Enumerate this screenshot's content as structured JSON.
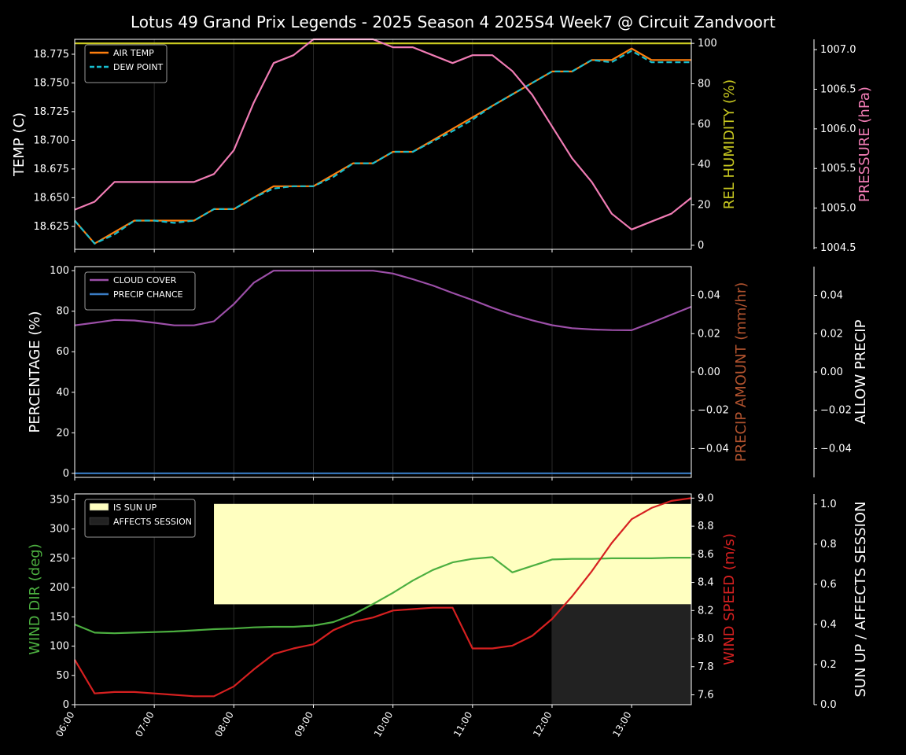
{
  "title": "Lotus 49 Grand Prix Legends - 2025 Season 4 2025S4 Week7 @ Circuit Zandvoort",
  "time_ticks": [
    "06:00",
    "07:00",
    "08:00",
    "09:00",
    "10:00",
    "11:00",
    "12:00",
    "13:00"
  ],
  "chart_data": [
    {
      "type": "line",
      "panel": "top",
      "x": [
        "06:00",
        "06:15",
        "06:30",
        "06:45",
        "07:00",
        "07:15",
        "07:30",
        "07:45",
        "08:00",
        "08:15",
        "08:30",
        "08:45",
        "09:00",
        "09:15",
        "09:30",
        "09:45",
        "10:00",
        "10:15",
        "10:30",
        "10:45",
        "11:00",
        "11:15",
        "11:30",
        "11:45",
        "12:00",
        "12:15",
        "12:30",
        "12:45",
        "13:00",
        "13:15",
        "13:30",
        "13:45"
      ],
      "axes": {
        "left": {
          "label": "TEMP (C)",
          "ylim": [
            18.605,
            18.788
          ],
          "ticks": [
            "18.625",
            "18.650",
            "18.675",
            "18.700",
            "18.725",
            "18.750",
            "18.775"
          ],
          "tick_values": [
            18.625,
            18.65,
            18.675,
            18.7,
            18.725,
            18.75,
            18.775
          ],
          "color": "#ffffff"
        },
        "right1": {
          "label": "REL HUMIDITY (%)",
          "ylim": [
            -2,
            102
          ],
          "ticks": [
            "0",
            "20",
            "40",
            "60",
            "80",
            "100"
          ],
          "tick_values": [
            0,
            20,
            40,
            60,
            80,
            100
          ],
          "color": "#c8c820"
        },
        "right2": {
          "label": "PRESSURE (hPa)",
          "ylim": [
            1004.48,
            1007.13
          ],
          "ticks": [
            "1004.5",
            "1005.0",
            "1005.5",
            "1006.0",
            "1006.5",
            "1007.0"
          ],
          "tick_values": [
            1004.5,
            1005.0,
            1005.5,
            1006.0,
            1006.5,
            1007.0
          ],
          "color": "#f07cb4"
        }
      },
      "series": [
        {
          "name": "AIR TEMP",
          "axis": "left",
          "color": "#ff7f0e",
          "style": "solid",
          "values": [
            18.63,
            18.61,
            18.62,
            18.63,
            18.63,
            18.63,
            18.63,
            18.64,
            18.64,
            18.65,
            18.66,
            18.66,
            18.66,
            18.67,
            18.68,
            18.68,
            18.69,
            18.69,
            18.7,
            18.71,
            18.72,
            18.73,
            18.74,
            18.75,
            18.76,
            18.76,
            18.77,
            18.77,
            18.78,
            18.77,
            18.77,
            18.77
          ]
        },
        {
          "name": "DEW POINT",
          "axis": "left",
          "color": "#17becf",
          "style": "dashed",
          "values": [
            18.63,
            18.61,
            18.618,
            18.63,
            18.63,
            18.628,
            18.63,
            18.64,
            18.64,
            18.65,
            18.658,
            18.66,
            18.66,
            18.668,
            18.68,
            18.68,
            18.69,
            18.69,
            18.699,
            18.708,
            18.718,
            18.73,
            18.74,
            18.75,
            18.76,
            18.76,
            18.77,
            18.768,
            18.778,
            18.768,
            18.768,
            18.768
          ]
        },
        {
          "name": "REL HUMIDITY",
          "axis": "right1",
          "color": "#c8c820",
          "style": "solid",
          "values": [
            100,
            100,
            100,
            100,
            100,
            100,
            100,
            100,
            100,
            100,
            100,
            100,
            100,
            100,
            100,
            100,
            100,
            100,
            100,
            100,
            100,
            100,
            100,
            100,
            100,
            100,
            100,
            100,
            100,
            100,
            100,
            100
          ]
        },
        {
          "name": "PRESSURE",
          "axis": "right2",
          "color": "#f07cb4",
          "style": "solid",
          "values": [
            1004.98,
            1005.08,
            1005.33,
            1005.33,
            1005.33,
            1005.33,
            1005.33,
            1005.43,
            1005.73,
            1006.33,
            1006.83,
            1006.93,
            1007.13,
            1007.13,
            1007.13,
            1007.13,
            1007.03,
            1007.03,
            1006.93,
            1006.83,
            1006.93,
            1006.93,
            1006.73,
            1006.43,
            1006.03,
            1005.63,
            1005.33,
            1004.93,
            1004.73,
            1004.83,
            1004.93,
            1005.13
          ]
        }
      ],
      "legend": {
        "placement": "top-left",
        "entries": [
          "AIR TEMP",
          "DEW POINT"
        ]
      },
      "grid": "vertical"
    },
    {
      "type": "line",
      "panel": "middle",
      "x": [
        "06:00",
        "06:15",
        "06:30",
        "06:45",
        "07:00",
        "07:15",
        "07:30",
        "07:45",
        "08:00",
        "08:15",
        "08:30",
        "08:45",
        "09:00",
        "09:15",
        "09:30",
        "09:45",
        "10:00",
        "10:15",
        "10:30",
        "10:45",
        "11:00",
        "11:15",
        "11:30",
        "11:45",
        "12:00",
        "12:15",
        "12:30",
        "12:45",
        "13:00",
        "13:15",
        "13:30",
        "13:45"
      ],
      "axes": {
        "left": {
          "label": "PERCENTAGE (%)",
          "ylim": [
            -2,
            102
          ],
          "ticks": [
            "0",
            "20",
            "40",
            "60",
            "80",
            "100"
          ],
          "tick_values": [
            0,
            20,
            40,
            60,
            80,
            100
          ],
          "color": "#ffffff"
        },
        "right1": {
          "label": "PRECIP AMOUNT (mm/hr)",
          "ylim": [
            -0.055,
            0.055
          ],
          "ticks": [
            "−0.04",
            "−0.02",
            "0.00",
            "0.02",
            "0.04"
          ],
          "tick_values": [
            -0.04,
            -0.02,
            0,
            0.02,
            0.04
          ],
          "color": "#b0522e"
        },
        "right2": {
          "label": "ALLOW PRECIP",
          "ylim": [
            -0.055,
            0.055
          ],
          "ticks": [
            "−0.04",
            "−0.02",
            "0.00",
            "0.02",
            "0.04"
          ],
          "tick_values": [
            -0.04,
            -0.02,
            0,
            0.02,
            0.04
          ],
          "color": "#ffffff"
        }
      },
      "series": [
        {
          "name": "CLOUD COVER",
          "axis": "left",
          "color": "#9c4fa8",
          "style": "solid",
          "values": [
            73,
            74.3,
            75.7,
            75.4,
            74.3,
            73,
            73,
            75,
            83.5,
            94,
            100,
            100,
            100,
            100,
            100,
            100,
            98.6,
            95.8,
            92.7,
            89,
            85.5,
            81.7,
            78.3,
            75.5,
            73.1,
            71.6,
            71,
            70.7,
            70.6,
            74.3,
            78.3,
            82.2
          ]
        },
        {
          "name": "PRECIP CHANCE",
          "axis": "left",
          "color": "#3a7cc4",
          "style": "solid",
          "values": [
            0,
            0,
            0,
            0,
            0,
            0,
            0,
            0,
            0,
            0,
            0,
            0,
            0,
            0,
            0,
            0,
            0,
            0,
            0,
            0,
            0,
            0,
            0,
            0,
            0,
            0,
            0,
            0,
            0,
            0,
            0,
            0
          ]
        }
      ],
      "legend": {
        "placement": "top-left",
        "entries": [
          "CLOUD COVER",
          "PRECIP CHANCE"
        ]
      },
      "grid": "vertical"
    },
    {
      "type": "line",
      "panel": "bottom",
      "x": [
        "06:00",
        "06:15",
        "06:30",
        "06:45",
        "07:00",
        "07:15",
        "07:30",
        "07:45",
        "08:00",
        "08:15",
        "08:30",
        "08:45",
        "09:00",
        "09:15",
        "09:30",
        "09:45",
        "10:00",
        "10:15",
        "10:30",
        "10:45",
        "11:00",
        "11:15",
        "11:30",
        "11:45",
        "12:00",
        "12:15",
        "12:30",
        "12:45",
        "13:00",
        "13:15",
        "13:30",
        "13:45"
      ],
      "axes": {
        "left": {
          "label": "WIND DIR (deg)",
          "ylim": [
            0,
            360
          ],
          "ticks": [
            "0",
            "50",
            "100",
            "150",
            "200",
            "250",
            "300",
            "350"
          ],
          "tick_values": [
            0,
            50,
            100,
            150,
            200,
            250,
            300,
            350
          ],
          "color": "#4caf40"
        },
        "right1": {
          "label": "WIND SPEED (m/s)",
          "ylim": [
            7.53,
            9.03
          ],
          "ticks": [
            "7.6",
            "7.8",
            "8.0",
            "8.2",
            "8.4",
            "8.6",
            "8.8",
            "9.0"
          ],
          "tick_values": [
            7.6,
            7.8,
            8.0,
            8.2,
            8.4,
            8.6,
            8.8,
            9.0
          ],
          "color": "#d62020"
        },
        "right2": {
          "label": "SUN UP / AFFECTS SESSION",
          "ylim": [
            0,
            1.05
          ],
          "ticks": [
            "0.0",
            "0.2",
            "0.4",
            "0.6",
            "0.8",
            "1.0"
          ],
          "tick_values": [
            0,
            0.2,
            0.4,
            0.6,
            0.8,
            1.0
          ],
          "color": "#ffffff"
        }
      },
      "series": [
        {
          "name": "WIND DIR",
          "axis": "left",
          "color": "#4caf40",
          "style": "solid",
          "values": [
            137,
            123,
            122,
            123,
            124,
            125,
            127,
            129,
            130,
            132,
            133,
            133,
            135,
            141,
            154,
            172,
            191,
            212,
            230,
            243,
            249,
            252,
            226,
            237,
            248,
            249,
            249,
            250,
            250,
            250,
            251,
            251
          ]
        },
        {
          "name": "WIND SPEED",
          "axis": "right1",
          "color": "#d62020",
          "style": "solid",
          "values": [
            7.85,
            7.61,
            7.62,
            7.62,
            7.61,
            7.6,
            7.59,
            7.59,
            7.66,
            7.78,
            7.89,
            7.93,
            7.96,
            8.06,
            8.12,
            8.15,
            8.2,
            8.21,
            8.22,
            8.22,
            7.93,
            7.93,
            7.95,
            8.02,
            8.14,
            8.3,
            8.48,
            8.68,
            8.85,
            8.93,
            8.98,
            9.0
          ]
        }
      ],
      "bands": [
        {
          "name": "IS SUN UP",
          "axis": "right2",
          "color": "#ffffc0",
          "from": "07:45",
          "to": "13:45",
          "ymin": 0.5,
          "ymax": 1.0
        },
        {
          "name": "AFFECTS SESSION",
          "axis": "right2",
          "color": "#222222",
          "from": "12:00",
          "to": "13:45",
          "ymin": 0.0,
          "ymax": 0.5
        }
      ],
      "legend": {
        "placement": "top-left",
        "entries": [
          "IS SUN UP",
          "AFFECTS SESSION"
        ]
      },
      "grid": "vertical"
    }
  ]
}
